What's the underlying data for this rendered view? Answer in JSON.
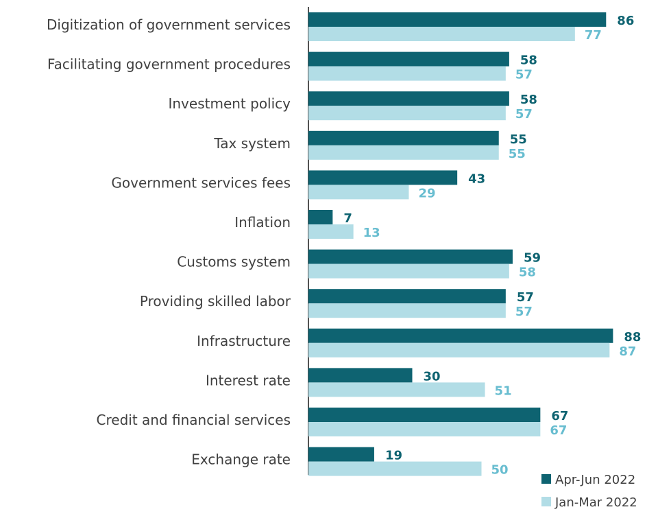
{
  "chart_data": {
    "type": "bar",
    "orientation": "horizontal",
    "categories": [
      "Digitization of government services",
      "Facilitating government procedures",
      "Investment policy",
      "Tax system",
      "Government services fees",
      "Inflation",
      "Customs system",
      "Providing skilled labor",
      "Infrastructure",
      "Interest rate",
      "Credit and financial services",
      "Exchange rate"
    ],
    "series": [
      {
        "name": "Apr-Jun 2022",
        "color": "#0e6371",
        "values": [
          86,
          58,
          58,
          55,
          43,
          7,
          59,
          57,
          88,
          30,
          67,
          19
        ]
      },
      {
        "name": "Jan-Mar 2022",
        "color": "#b2dde6",
        "values": [
          77,
          57,
          57,
          55,
          29,
          13,
          58,
          57,
          87,
          51,
          67,
          50
        ]
      }
    ],
    "label_colors": [
      "#0e6371",
      "#68bdd0"
    ],
    "xlim": [
      0,
      100
    ],
    "grid": false,
    "legend_position": "bottom-right",
    "title": "",
    "xlabel": "",
    "ylabel": ""
  }
}
